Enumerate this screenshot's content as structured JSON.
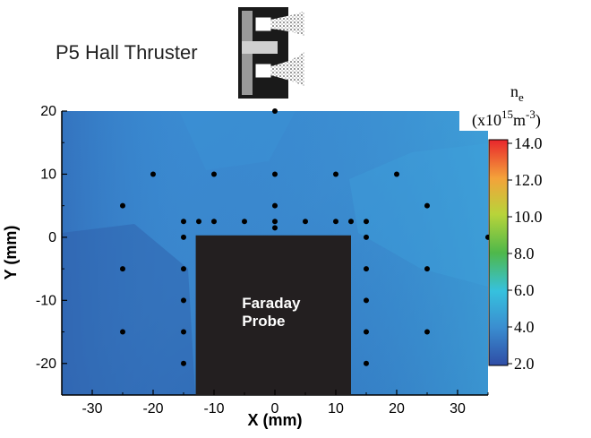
{
  "thruster_title": "P5 Hall Thruster",
  "probe_label": [
    "Faraday",
    "Probe"
  ],
  "colorbar": {
    "title_line1": "n",
    "title_line1_sub": "e",
    "title_line2_pre": "(x10",
    "title_line2_sup": "15",
    "title_line2_mid": "m",
    "title_line2_sup2": "-3",
    "title_line2_post": ")",
    "ticks": [
      "2.0",
      "4.0",
      "6.0",
      "8.0",
      "10.0",
      "12.0",
      "14.0"
    ],
    "colors": [
      "#3050a8",
      "#3a8ed0",
      "#36c1de",
      "#4fb84a",
      "#b8d43a",
      "#f4a23a",
      "#e8262c"
    ]
  },
  "chart_data": {
    "type": "heatmap",
    "xlabel": "X (mm)",
    "ylabel": "Y (mm)",
    "xlim": [
      -35,
      35
    ],
    "ylim": [
      -25,
      20
    ],
    "x_ticks": [
      -30,
      -20,
      -10,
      0,
      10,
      20,
      30
    ],
    "y_ticks": [
      -20,
      -10,
      0,
      10,
      20
    ],
    "colorbar_range": [
      2.0,
      14.0
    ],
    "probe_region": {
      "x": [
        -13,
        12.5
      ],
      "y": [
        -25,
        0.3
      ]
    },
    "measurement_points": [
      [
        0,
        20
      ],
      [
        -20,
        10
      ],
      [
        -10,
        10
      ],
      [
        0,
        10
      ],
      [
        10,
        10
      ],
      [
        20,
        10
      ],
      [
        -25,
        5
      ],
      [
        0,
        5
      ],
      [
        25,
        5
      ],
      [
        -15,
        2.5
      ],
      [
        -12.5,
        2.5
      ],
      [
        -10,
        2.5
      ],
      [
        -5,
        2.5
      ],
      [
        0,
        2.5
      ],
      [
        5,
        2.5
      ],
      [
        10,
        2.5
      ],
      [
        12.5,
        2.5
      ],
      [
        15,
        2.5
      ],
      [
        0,
        1.5
      ],
      [
        -15,
        0
      ],
      [
        15,
        0
      ],
      [
        35,
        0
      ],
      [
        -25,
        -5
      ],
      [
        -15,
        -5
      ],
      [
        15,
        -5
      ],
      [
        25,
        -5
      ],
      [
        -15,
        -10
      ],
      [
        15,
        -10
      ],
      [
        -25,
        -15
      ],
      [
        -15,
        -15
      ],
      [
        15,
        -15
      ],
      [
        25,
        -15
      ],
      [
        -15,
        -20
      ],
      [
        15,
        -20
      ]
    ]
  }
}
